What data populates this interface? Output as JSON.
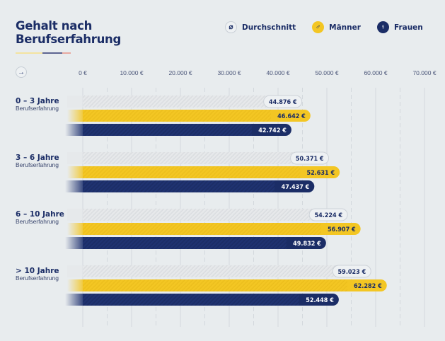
{
  "header": {
    "title_line1": "Gehalt nach",
    "title_line2": "Berufserfahrung",
    "underline_colors": [
      "#f3e3a0",
      "#5d6591",
      "#e8a9a0"
    ]
  },
  "legend": [
    {
      "key": "avg",
      "label": "Durchschnitt",
      "icon": "average-icon",
      "glyph": "⌀"
    },
    {
      "key": "men",
      "label": "Männer",
      "icon": "male-icon",
      "glyph": "♂"
    },
    {
      "key": "women",
      "label": "Frauen",
      "icon": "female-icon",
      "glyph": "♀"
    }
  ],
  "controls": {
    "arrow_glyph": "→"
  },
  "colors": {
    "background": "#e8ecee",
    "avg": "#dcdfe2",
    "avg_pill": "#eef1f3",
    "men": "#f3c623",
    "women": "#1b2d66",
    "text_dark": "#1b2d66"
  },
  "chart_data": {
    "type": "bar",
    "orientation": "horizontal",
    "title": "Gehalt nach Berufserfahrung",
    "xlabel": "",
    "ylabel": "",
    "xlim": [
      0,
      70000
    ],
    "grid": true,
    "legend_position": "top-right",
    "x_ticks": [
      0,
      10000,
      20000,
      30000,
      40000,
      50000,
      60000,
      70000
    ],
    "x_tick_labels": [
      "0 €",
      "10.000 €",
      "20.000 €",
      "30.000 €",
      "40.000 €",
      "50.000 €",
      "60.000 €",
      "70.000 €"
    ],
    "categories": [
      {
        "title": "0 – 3 Jahre",
        "subtitle": "Berufserfahrung"
      },
      {
        "title": "3 – 6 Jahre",
        "subtitle": "Berufserfahrung"
      },
      {
        "title": "6 – 10 Jahre",
        "subtitle": "Berufserfahrung"
      },
      {
        "title": "> 10 Jahre",
        "subtitle": "Berufserfahrung"
      }
    ],
    "series": [
      {
        "name": "Durchschnitt",
        "key": "avg",
        "values": [
          44876,
          50371,
          54224,
          59023
        ],
        "labels": [
          "44.876 €",
          "50.371 €",
          "54.224 €",
          "59.023 €"
        ]
      },
      {
        "name": "Männer",
        "key": "men",
        "values": [
          46642,
          52631,
          56907,
          62282
        ],
        "labels": [
          "46.642 €",
          "52.631 €",
          "56.907 €",
          "62.282 €"
        ]
      },
      {
        "name": "Frauen",
        "key": "women",
        "values": [
          42742,
          47437,
          49832,
          52448
        ],
        "labels": [
          "42.742 €",
          "47.437 €",
          "49.832 €",
          "52.448 €"
        ]
      }
    ]
  }
}
